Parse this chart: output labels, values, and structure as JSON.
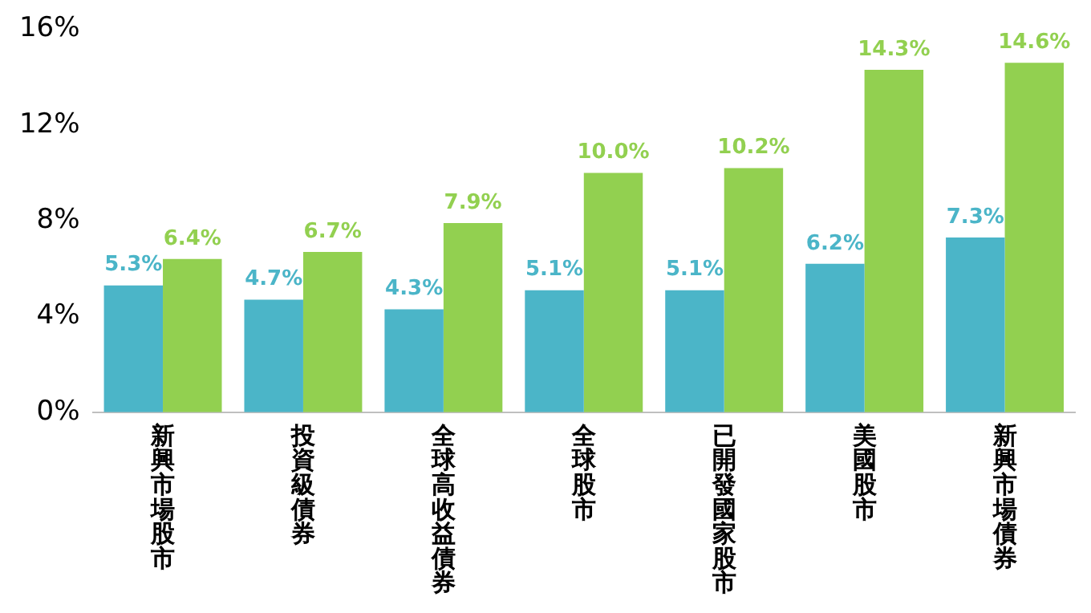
{
  "chart_data": {
    "type": "bar",
    "categories": [
      "新興市場股市",
      "投資級債券",
      "全球高收益債券",
      "全球股市",
      "已開發國家股市",
      "美國股市",
      "新興市場債券"
    ],
    "series": [
      {
        "color": "#4bb5c8",
        "values": [
          5.3,
          4.7,
          4.3,
          5.1,
          5.1,
          6.2,
          7.3
        ],
        "value_labels": [
          "5.3%",
          "4.7%",
          "4.3%",
          "5.1%",
          "5.1%",
          "6.2%",
          "7.3%"
        ]
      },
      {
        "color": "#92d050",
        "values": [
          6.4,
          6.7,
          7.9,
          10.0,
          10.2,
          14.3,
          14.6
        ],
        "value_labels": [
          "6.4%",
          "6.7%",
          "7.9%",
          "10.0%",
          "10.2%",
          "14.3%",
          "14.6%"
        ]
      }
    ],
    "ylim": [
      0,
      16
    ],
    "yticks": [
      {
        "value": 0,
        "label": "0%"
      },
      {
        "value": 4,
        "label": "4%"
      },
      {
        "value": 8,
        "label": "8%"
      },
      {
        "value": 12,
        "label": "12%"
      },
      {
        "value": 16,
        "label": "16%"
      }
    ],
    "grid": false,
    "legend": false
  }
}
